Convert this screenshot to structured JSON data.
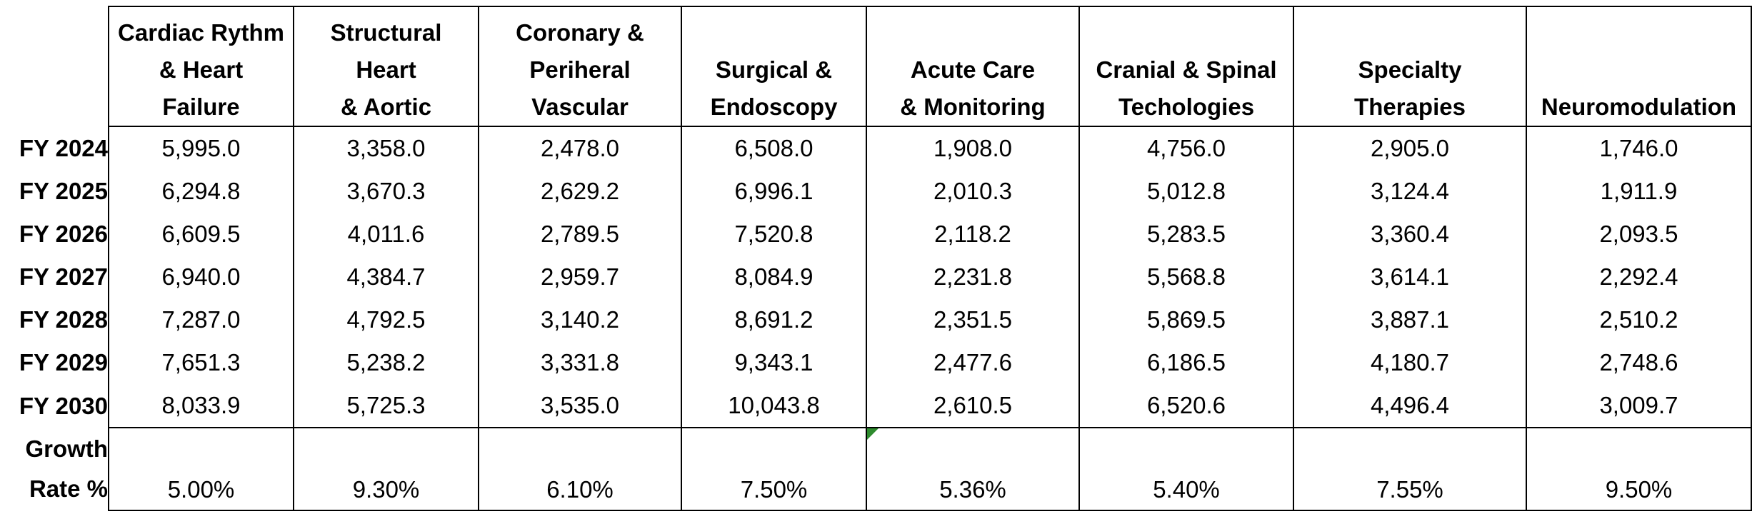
{
  "columns": [
    "Cardiac Rythm\n& Heart\nFailure",
    "Structural\nHeart\n& Aortic",
    "Coronary &\nPeriheral\nVascular",
    "Surgical &\nEndoscopy",
    "Acute Care\n& Monitoring",
    "Cranial & Spinal\nTechologies",
    "Specialty\nTherapies",
    "Neuromodulation"
  ],
  "rows": [
    {
      "label": "FY 2024",
      "values": [
        "5,995.0",
        "3,358.0",
        "2,478.0",
        "6,508.0",
        "1,908.0",
        "4,756.0",
        "2,905.0",
        "1,746.0"
      ]
    },
    {
      "label": "FY 2025",
      "values": [
        "6,294.8",
        "3,670.3",
        "2,629.2",
        "6,996.1",
        "2,010.3",
        "5,012.8",
        "3,124.4",
        "1,911.9"
      ]
    },
    {
      "label": "FY 2026",
      "values": [
        "6,609.5",
        "4,011.6",
        "2,789.5",
        "7,520.8",
        "2,118.2",
        "5,283.5",
        "3,360.4",
        "2,093.5"
      ]
    },
    {
      "label": "FY 2027",
      "values": [
        "6,940.0",
        "4,384.7",
        "2,959.7",
        "8,084.9",
        "2,231.8",
        "5,568.8",
        "3,614.1",
        "2,292.4"
      ]
    },
    {
      "label": "FY 2028",
      "values": [
        "7,287.0",
        "4,792.5",
        "3,140.2",
        "8,691.2",
        "2,351.5",
        "5,869.5",
        "3,887.1",
        "2,510.2"
      ]
    },
    {
      "label": "FY 2029",
      "values": [
        "7,651.3",
        "5,238.2",
        "3,331.8",
        "9,343.1",
        "2,477.6",
        "6,186.5",
        "4,180.7",
        "2,748.6"
      ]
    },
    {
      "label": "FY 2030",
      "values": [
        "8,033.9",
        "5,725.3",
        "3,535.0",
        "10,043.8",
        "2,610.5",
        "6,520.6",
        "4,496.4",
        "3,009.7"
      ]
    }
  ],
  "growth": {
    "label": "Growth\nRate %",
    "values": [
      "5.00%",
      "9.30%",
      "6.10%",
      "7.50%",
      "5.36%",
      "5.40%",
      "7.55%",
      "9.50%"
    ]
  },
  "colors": {
    "flag": "#2e8b2e",
    "border": "#000000"
  }
}
